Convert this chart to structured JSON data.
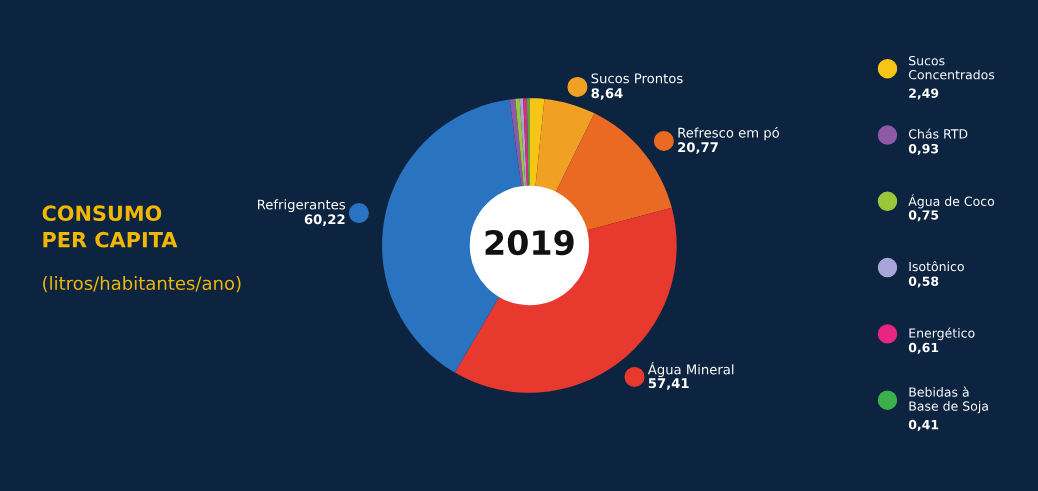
{
  "chart_data": {
    "type": "donut",
    "title": "CONSUMO PER CAPITA",
    "subtitle": "(litros/habitantes/ano)",
    "annotations": [
      "2019"
    ],
    "categories": [
      "Sucos Concentrados",
      "Sucos Prontos",
      "Refresco em pó",
      "Água Mineral",
      "Refrigerantes",
      "Chás RTD",
      "Água de Coco",
      "Isotônico",
      "Energético",
      "Bebidas à Base de Soja"
    ],
    "values": [
      2.49,
      8.64,
      20.77,
      57.41,
      60.22,
      0.93,
      0.75,
      0.58,
      0.61,
      0.41
    ],
    "value_labels": [
      "2,49",
      "8,64",
      "20,77",
      "57,41",
      "60,22",
      "0,93",
      "0,75",
      "0,58",
      "0,61",
      "0,41"
    ],
    "colors": [
      "#f7c515",
      "#f0a023",
      "#ea6a24",
      "#e8392f",
      "#2a73c0",
      "#8e5aa8",
      "#9ac63c",
      "#a8a6d8",
      "#e6267f",
      "#3bb04b"
    ],
    "legend": "right"
  }
}
